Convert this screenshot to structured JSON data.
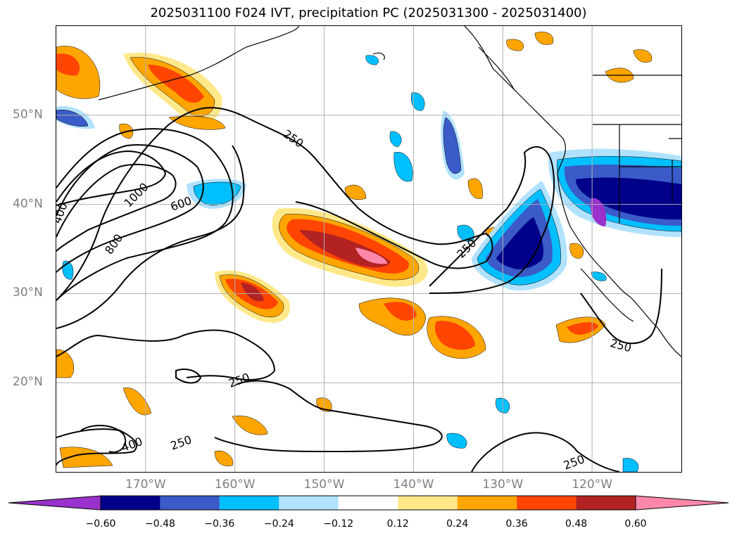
{
  "title": "2025031100 F024 IVT, precipitation PC (2025031300 - 2025031400)",
  "map": {
    "lat_labels": [
      "50°N",
      "40°N",
      "30°N",
      "20°N"
    ],
    "lat_values": [
      50,
      40,
      30,
      20
    ],
    "lon_labels": [
      "170°W",
      "160°W",
      "150°W",
      "140°W",
      "130°W",
      "120°W"
    ],
    "lon_values": [
      -170,
      -160,
      -150,
      -140,
      -130,
      -120
    ],
    "extent": {
      "lon_min": -180,
      "lon_max": -110,
      "lat_min": 10,
      "lat_max": 60
    },
    "ivt_contour_labels": [
      {
        "text": "250",
        "lon": -153.5,
        "lat": 47.3,
        "rot": 35
      },
      {
        "text": "250",
        "lon": -134.0,
        "lat": 35.0,
        "rot": -45
      },
      {
        "text": "250",
        "lon": -116.8,
        "lat": 24.1,
        "rot": 15
      },
      {
        "text": "250",
        "lon": -159.5,
        "lat": 20.2,
        "rot": -20
      },
      {
        "text": "250",
        "lon": -166.0,
        "lat": 13.2,
        "rot": -20
      },
      {
        "text": "250",
        "lon": -122.0,
        "lat": 11.0,
        "rot": -20
      },
      {
        "text": "400",
        "lon": -179.5,
        "lat": 39.0,
        "rot": -70
      },
      {
        "text": "400",
        "lon": -171.5,
        "lat": 13.0,
        "rot": -20
      },
      {
        "text": "600",
        "lon": -166.0,
        "lat": 40.0,
        "rot": -20
      },
      {
        "text": "800",
        "lon": -173.5,
        "lat": 35.5,
        "rot": -55
      },
      {
        "text": "1000",
        "lon": -171.0,
        "lat": 41.0,
        "rot": -45
      }
    ]
  },
  "colorbar": {
    "colors": [
      "#9932cc",
      "#00008b",
      "#3a5bc8",
      "#00bfff",
      "#b0e2ff",
      "#ffffff",
      "#ffe88a",
      "#ffa500",
      "#ff4500",
      "#b22222",
      "#ff88aa"
    ],
    "tick_labels": [
      "−0.60",
      "−0.48",
      "−0.36",
      "−0.24",
      "−0.12",
      "0.12",
      "0.24",
      "0.36",
      "0.48",
      "0.60"
    ],
    "tick_values": [
      -0.6,
      -0.48,
      -0.36,
      -0.24,
      -0.12,
      0.12,
      0.24,
      0.36,
      0.48,
      0.6
    ]
  }
}
